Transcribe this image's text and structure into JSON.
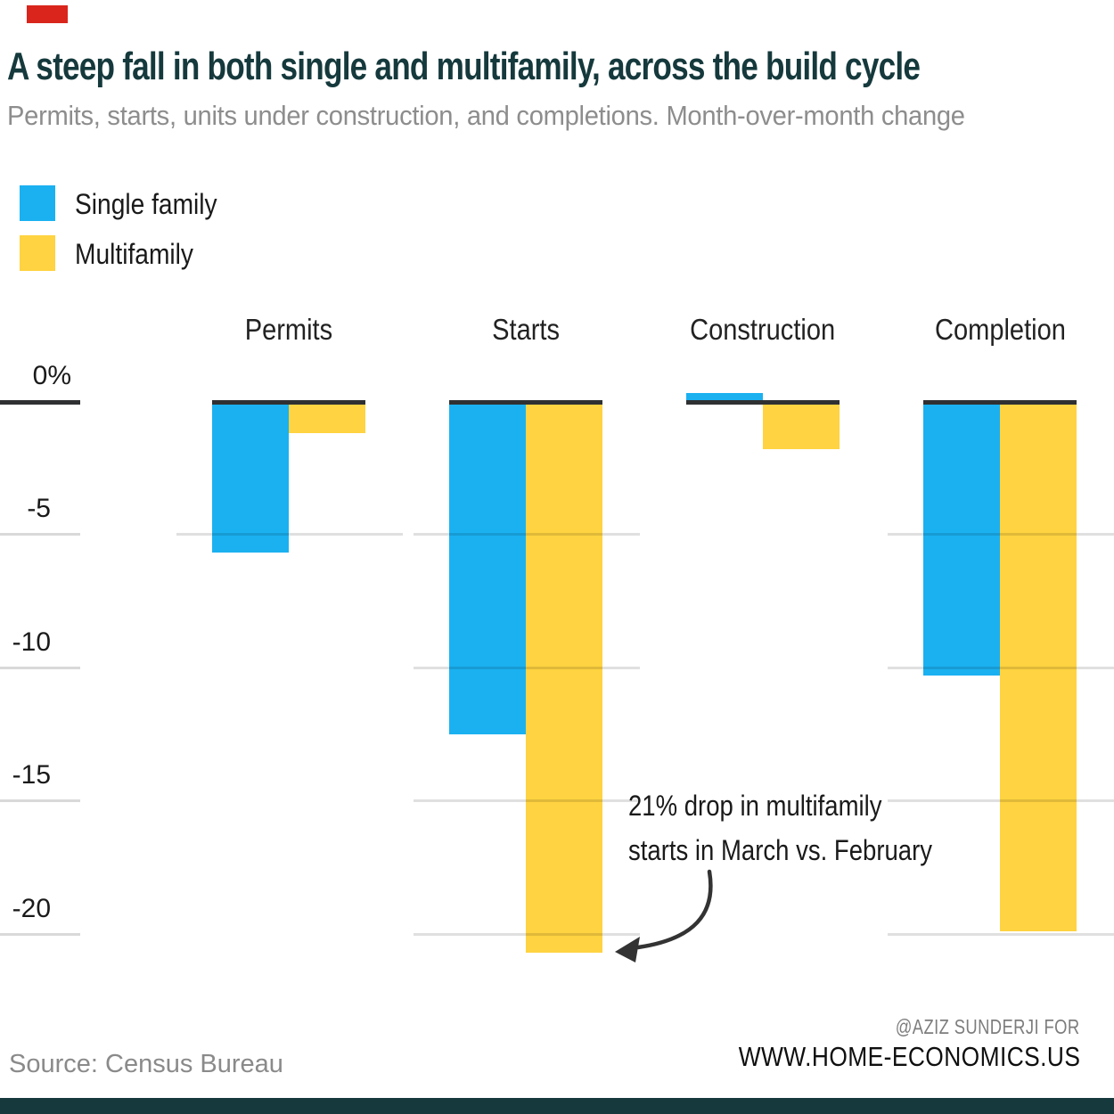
{
  "accent": {
    "color": "#D9251C"
  },
  "header": {
    "title": "A steep fall in both single and multifamily, across the build cycle",
    "subtitle": "Permits, starts, units under construction, and completions. Month-over-month change"
  },
  "legend": [
    {
      "label": "Single family",
      "color": "#1BB1F1"
    },
    {
      "label": "Multifamily",
      "color": "#FFD341"
    }
  ],
  "chart_data": {
    "type": "bar",
    "title": "A steep fall in both single and multifamily, across the build cycle",
    "subtitle": "Permits, starts, units under construction, and completions. Month-over-month change",
    "categories": [
      "Permits",
      "Starts",
      "Construction",
      "Completion"
    ],
    "series": [
      {
        "name": "Single family",
        "color": "#1BB1F1",
        "values": [
          -5.7,
          -12.5,
          0.3,
          -10.3
        ]
      },
      {
        "name": "Multifamily",
        "color": "#FFD341",
        "values": [
          -1.2,
          -20.7,
          -1.8,
          -19.9
        ]
      }
    ],
    "unit": "%",
    "ylim": [
      -22,
      1
    ],
    "yticks": [
      "0%",
      "-5",
      "-10",
      "-15",
      "-20"
    ],
    "ytick_values": [
      0,
      -5,
      -10,
      -15,
      -20
    ],
    "grid": "partial",
    "legend_position": "top-left",
    "annotation": {
      "line1": "21% drop in multifamily",
      "line2": "starts in March vs. February"
    },
    "colors": {
      "zero_line": "#2F3032",
      "gridline": "#D9D9D9",
      "grid_over_bar": "rgba(0,0,0,0.12)"
    }
  },
  "footer": {
    "source": "Source: Census Bureau",
    "credit_line1": "@AZIZ SUNDERJI FOR",
    "credit_line2": "WWW.HOME-ECONOMICS.US"
  }
}
